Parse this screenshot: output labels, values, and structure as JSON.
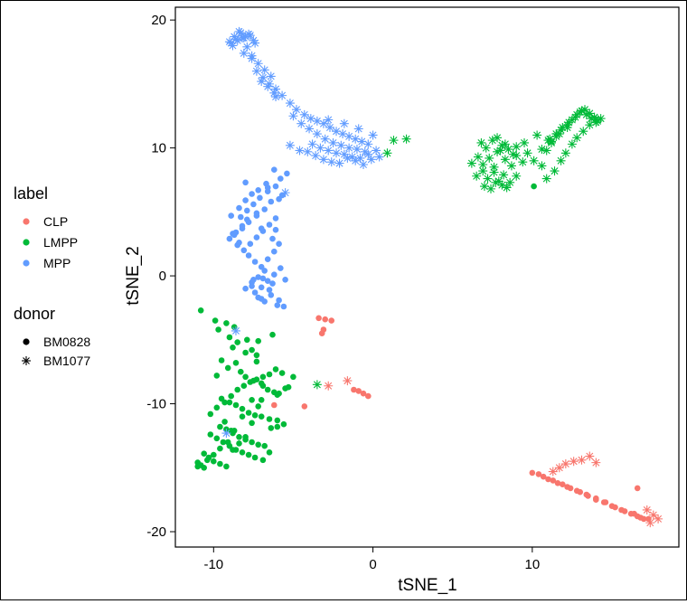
{
  "chart_data": {
    "type": "scatter",
    "xlabel": "tSNE_1",
    "ylabel": "tSNE_2",
    "xlim": [
      -12.4,
      19.2
    ],
    "ylim": [
      -21.2,
      21.0
    ],
    "x_ticks": [
      -10,
      0,
      10
    ],
    "y_ticks": [
      -20,
      -10,
      0,
      10,
      20
    ],
    "x_tick_labels": [
      "-10",
      "0",
      "10"
    ],
    "y_tick_labels": [
      "-20",
      "-10",
      "0",
      "10",
      "20"
    ],
    "grid": false,
    "legend_position": "left",
    "legends": [
      {
        "title": "label",
        "entries": [
          {
            "label": "CLP",
            "color": "#F8766D"
          },
          {
            "label": "LMPP",
            "color": "#00BA38"
          },
          {
            "label": "MPP",
            "color": "#619CFF"
          }
        ]
      },
      {
        "title": "donor",
        "entries": [
          {
            "label": "BM0828",
            "shape": "dot"
          },
          {
            "label": "BM1077",
            "shape": "asterisk"
          }
        ]
      }
    ],
    "series": [
      {
        "name": "CLP",
        "donor": "BM0828",
        "color": "#F8766D",
        "shape": "dot",
        "x": [
          -3.4,
          -3.0,
          -2.6,
          -3.1,
          -3.2,
          -1.2,
          -0.9,
          -0.6,
          -0.3,
          -4.3,
          -6.2,
          10.0,
          10.7,
          11.3,
          11.9,
          12.4,
          13.0,
          13.5,
          14.0,
          14.5,
          15.0,
          15.6,
          16.2,
          16.6,
          17.0,
          17.3,
          11.0,
          12.2,
          13.4,
          14.6,
          15.8,
          16.8,
          10.4,
          11.6,
          12.8,
          14.0,
          15.2,
          16.4,
          16.6
        ],
        "y": [
          -3.3,
          -3.4,
          -3.5,
          -4.2,
          -4.5,
          -8.9,
          -9.0,
          -9.2,
          -9.4,
          -10.2,
          -10.1,
          -15.4,
          -15.7,
          -16.0,
          -16.3,
          -16.6,
          -16.9,
          -17.2,
          -17.5,
          -17.7,
          -18.0,
          -18.3,
          -18.6,
          -18.8,
          -19.0,
          -19.0,
          -15.9,
          -16.5,
          -17.1,
          -17.7,
          -18.4,
          -18.9,
          -15.5,
          -16.2,
          -16.8,
          -17.4,
          -18.1,
          -18.6,
          -16.6
        ]
      },
      {
        "name": "CLP",
        "donor": "BM1077",
        "color": "#F8766D",
        "shape": "asterisk",
        "x": [
          -1.6,
          -2.8,
          11.3,
          11.7,
          12.1,
          12.6,
          13.1,
          13.6,
          14.0,
          17.2,
          17.6,
          17.9,
          17.4
        ],
        "y": [
          -8.2,
          -8.6,
          -15.3,
          -15.0,
          -14.7,
          -14.5,
          -14.4,
          -14.1,
          -14.6,
          -18.3,
          -18.7,
          -19.0,
          -19.3
        ]
      },
      {
        "name": "LMPP",
        "donor": "BM0828",
        "color": "#00BA38",
        "shape": "dot",
        "x": [
          -10.8,
          -9.9,
          -9.2,
          -9.7,
          -9.0,
          -8.5,
          -8.8,
          -7.9,
          -7.6,
          -7.3,
          -8.6,
          -9.1,
          -8.3,
          -8.0,
          -7.5,
          -6.9,
          -6.6,
          -6.2,
          -5.9,
          -5.5,
          -9.5,
          -9.0,
          -8.6,
          -8.2,
          -7.8,
          -7.4,
          -7.0,
          -6.5,
          -6.0,
          -5.6,
          -9.6,
          -9.2,
          -8.8,
          -8.4,
          -8.0,
          -7.6,
          -7.2,
          -6.8,
          -6.4,
          -6.0,
          -10.2,
          -9.8,
          -9.4,
          -9.0,
          -8.6,
          -8.2,
          -7.8,
          -7.4,
          -6.9,
          -6.5,
          -10.6,
          -10.3,
          -10.0,
          -9.6,
          -9.2,
          -8.8,
          -8.4,
          -8.0,
          -7.6,
          -7.2,
          -11.0,
          -10.8,
          -10.4,
          -10.0,
          -9.6,
          -9.1,
          -8.7,
          -8.2,
          -7.6,
          -7.0,
          -11.0,
          -10.6,
          -10.2,
          -9.8,
          -9.3,
          -8.9,
          -8.5,
          -8.1,
          -7.7,
          -7.3,
          -6.9,
          -6.5,
          -6.1,
          -5.7,
          -5.3,
          -9.5,
          -9.8,
          -8.0,
          -7.2,
          -6.3,
          -5.0,
          -9.3,
          -8.9,
          -7.3,
          -7.0,
          -6.0,
          -8.7,
          10.1
        ],
        "y": [
          -2.7,
          -3.5,
          -3.7,
          -4.2,
          -4.8,
          -5.2,
          -5.6,
          -5.0,
          -5.8,
          -6.2,
          -6.8,
          -7.2,
          -7.5,
          -7.9,
          -8.2,
          -8.6,
          -8.9,
          -9.1,
          -9.2,
          -8.8,
          -9.6,
          -9.9,
          -10.1,
          -10.4,
          -10.7,
          -10.9,
          -11.0,
          -11.2,
          -11.3,
          -11.6,
          -11.8,
          -12.0,
          -12.3,
          -12.6,
          -12.8,
          -13.0,
          -13.2,
          -13.3,
          -11.9,
          -11.8,
          -12.4,
          -12.7,
          -13.0,
          -13.3,
          -13.6,
          -13.8,
          -14.0,
          -14.2,
          -14.4,
          -13.8,
          -13.9,
          -14.2,
          -14.5,
          -14.7,
          -14.9,
          -13.6,
          -13.1,
          -12.6,
          -11.5,
          -10.2,
          -14.6,
          -14.8,
          -14.4,
          -14.0,
          -13.5,
          -13.0,
          -12.1,
          -11.0,
          -9.7,
          -8.4,
          -14.9,
          -15.0,
          -10.8,
          -10.3,
          -9.9,
          -9.4,
          -8.9,
          -8.6,
          -8.3,
          -8.1,
          -7.9,
          -7.7,
          -7.3,
          -7.6,
          -8.7,
          -6.6,
          -7.8,
          -6.0,
          -5.1,
          -4.6,
          -7.9,
          -11.4,
          -12.1,
          -6.7,
          -9.7,
          -9.3,
          -4.0,
          7.0
        ]
      },
      {
        "name": "LMPP",
        "donor": "BM1077",
        "color": "#00BA38",
        "shape": "asterisk",
        "x": [
          6.2,
          6.6,
          6.9,
          7.3,
          7.6,
          8.0,
          8.3,
          8.7,
          9.0,
          9.4,
          6.5,
          6.9,
          7.2,
          7.6,
          7.9,
          8.2,
          8.6,
          9.0,
          6.8,
          7.1,
          7.5,
          7.8,
          8.1,
          8.5,
          8.8,
          7.0,
          7.4,
          7.7,
          8.1,
          8.4,
          7.8,
          8.3,
          9.0,
          9.7,
          10.1,
          10.6,
          10.9,
          11.2,
          11.5,
          11.8,
          12.2,
          12.5,
          12.8,
          13.1,
          13.4,
          13.7,
          14.0,
          14.3,
          10.9,
          11.4,
          11.8,
          12.1,
          12.5,
          12.8,
          13.2,
          13.6,
          14.0,
          11.0,
          11.5,
          11.9,
          12.3,
          12.7,
          13.0,
          13.3,
          13.6,
          13.9,
          14.1,
          10.6,
          11.2,
          11.7,
          12.2,
          -3.5,
          1.3,
          2.1,
          0.9,
          9.5,
          10.3,
          11.1
        ],
        "y": [
          8.8,
          9.3,
          8.7,
          9.2,
          8.5,
          9.8,
          9.1,
          8.6,
          9.4,
          8.9,
          7.8,
          8.2,
          7.6,
          8.1,
          7.4,
          7.9,
          7.3,
          7.8,
          10.4,
          10.0,
          10.6,
          9.7,
          10.2,
          9.9,
          9.5,
          7.0,
          6.8,
          7.3,
          7.1,
          6.9,
          10.8,
          10.3,
          10.1,
          9.6,
          9.0,
          8.6,
          9.8,
          10.4,
          10.9,
          11.4,
          11.8,
          12.2,
          12.6,
          12.9,
          12.6,
          12.3,
          12.0,
          12.3,
          7.6,
          8.2,
          9.0,
          9.6,
          10.3,
          10.8,
          11.3,
          11.8,
          12.2,
          10.6,
          11.1,
          11.6,
          12.0,
          12.4,
          12.8,
          13.0,
          12.7,
          12.4,
          12.1,
          9.9,
          10.5,
          11.1,
          11.6,
          -8.5,
          10.6,
          10.7,
          9.6,
          10.4,
          11.0,
          10.7
        ]
      },
      {
        "name": "MPP",
        "donor": "BM0828",
        "color": "#619CFF",
        "shape": "dot",
        "x": [
          -5.4,
          -5.8,
          -6.2,
          -6.7,
          -7.2,
          -7.6,
          -8.0,
          -8.4,
          -8.9,
          -8.3,
          -7.9,
          -7.5,
          -7.1,
          -6.6,
          -6.1,
          -5.7,
          -6.4,
          -6.8,
          -7.3,
          -7.8,
          -8.2,
          -8.7,
          -9.0,
          -8.5,
          -8.1,
          -7.7,
          -7.3,
          -6.9,
          -6.5,
          -6.1,
          -7.8,
          -7.4,
          -7.0,
          -6.6,
          -6.2,
          -5.9,
          -6.8,
          -7.2,
          -7.6,
          -8.0,
          -7.4,
          -7.0,
          -6.6,
          -6.2,
          -5.8,
          -5.5,
          -6.4,
          -6.8,
          -7.2,
          -7.6,
          -6.0,
          -5.6,
          -6.5,
          -7.0,
          -6.3,
          -5.9,
          -7.5,
          -6.9,
          -8.6,
          -8.2,
          -7.9,
          -6.3,
          -7.0,
          -6.6,
          -5.9,
          -7.3,
          -6.1,
          -8.8,
          -8.4,
          -8.0
        ],
        "y": [
          8.0,
          7.6,
          8.3,
          7.2,
          6.7,
          6.4,
          5.9,
          5.3,
          4.7,
          4.6,
          5.1,
          5.6,
          6.1,
          6.6,
          7.0,
          6.3,
          5.8,
          5.2,
          4.7,
          4.2,
          3.7,
          3.2,
          2.9,
          2.4,
          2.0,
          2.5,
          3.0,
          3.5,
          4.0,
          4.5,
          1.6,
          1.1,
          0.7,
          1.3,
          1.9,
          2.5,
          0.4,
          -0.1,
          -0.5,
          -1.0,
          -1.3,
          -0.9,
          -0.4,
          0.1,
          0.6,
          -0.3,
          -1.5,
          -2.0,
          -1.7,
          -0.8,
          -2.3,
          -2.4,
          -1.1,
          -1.8,
          -0.6,
          -1.9,
          -0.3,
          -0.2,
          3.4,
          3.9,
          4.4,
          2.9,
          3.7,
          6.9,
          6.0,
          4.9,
          3.6,
          3.3,
          2.6,
          7.3
        ]
      },
      {
        "name": "MPP",
        "donor": "BM1077",
        "color": "#619CFF",
        "shape": "asterisk",
        "x": [
          -9.0,
          -8.7,
          -8.4,
          -8.1,
          -7.8,
          -7.5,
          -8.9,
          -8.6,
          -8.3,
          -8.0,
          -7.7,
          -7.4,
          -8.8,
          -8.5,
          -8.2,
          -7.9,
          -7.6,
          -8.1,
          -7.6,
          -7.2,
          -6.8,
          -6.4,
          -7.0,
          -6.6,
          -6.2,
          -7.3,
          -6.9,
          -6.5,
          -6.1,
          -5.7,
          -5.2,
          -6.1,
          -4.8,
          -4.3,
          -3.9,
          -3.5,
          -3.1,
          -2.7,
          -2.3,
          -1.9,
          -1.5,
          -1.1,
          -0.7,
          -0.3,
          -5.0,
          -4.5,
          -4.0,
          -3.5,
          -3.0,
          -2.5,
          -2.0,
          -1.5,
          -1.0,
          -0.5,
          -3.8,
          -3.3,
          -2.8,
          -2.3,
          -1.8,
          -1.3,
          -0.8,
          -0.3,
          0.2,
          -4.1,
          -3.6,
          -3.1,
          -2.6,
          -2.1,
          -1.6,
          -1.1,
          -0.6,
          -0.1,
          0.4,
          -5.2,
          -4.6,
          -2.8,
          -1.8,
          -0.9,
          0.0,
          -5.5,
          -8.6,
          -9.2
        ],
        "y": [
          18.3,
          18.7,
          19.1,
          18.6,
          18.9,
          18.4,
          18.2,
          18.5,
          19.0,
          18.7,
          18.8,
          18.2,
          18.0,
          18.4,
          18.6,
          17.9,
          17.2,
          17.4,
          17.0,
          16.6,
          16.1,
          15.6,
          15.2,
          14.8,
          14.3,
          16.0,
          15.5,
          15.0,
          14.6,
          14.1,
          13.5,
          14.0,
          13.0,
          12.6,
          12.3,
          12.1,
          11.9,
          11.6,
          11.3,
          11.1,
          10.9,
          10.7,
          10.5,
          10.3,
          12.5,
          11.9,
          11.5,
          11.1,
          10.7,
          10.4,
          10.2,
          10.0,
          9.9,
          9.7,
          10.3,
          10.0,
          9.8,
          9.6,
          9.5,
          9.3,
          9.2,
          9.5,
          9.8,
          9.7,
          9.4,
          9.1,
          8.9,
          8.8,
          9.2,
          9.0,
          8.7,
          9.1,
          9.3,
          10.2,
          9.8,
          12.2,
          11.9,
          11.5,
          11.0,
          6.5,
          -4.3,
          -12.3
        ]
      }
    ]
  }
}
